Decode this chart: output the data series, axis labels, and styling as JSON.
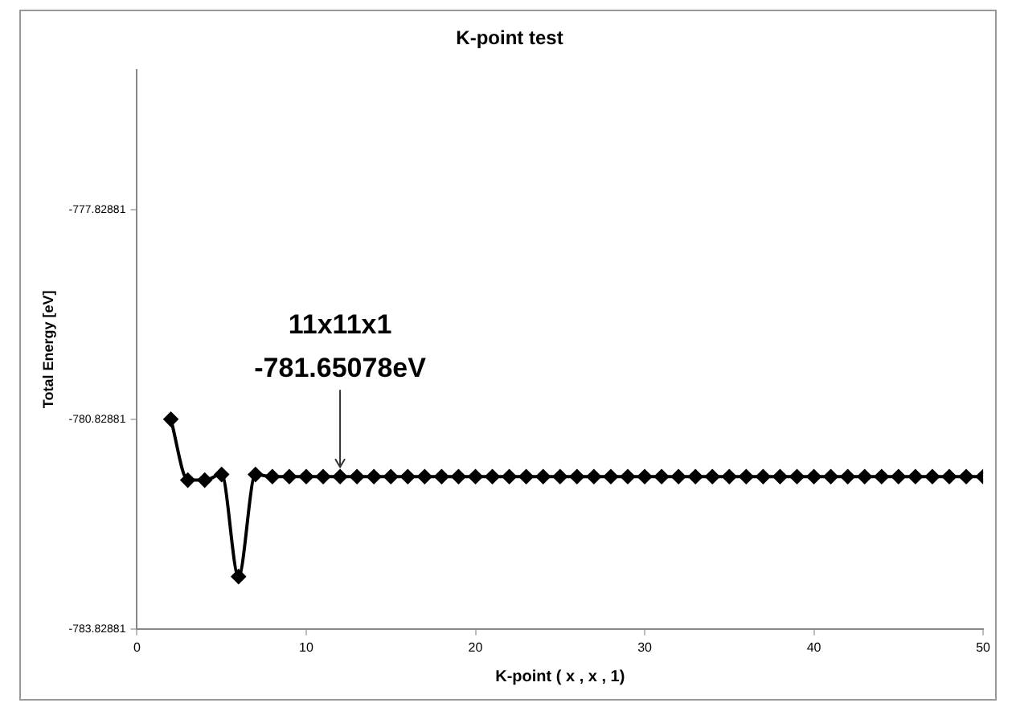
{
  "chart_data": {
    "type": "line",
    "title": "K-point test",
    "xlabel": "K-point ( x , x , 1)",
    "ylabel": "Total Energy [eV]",
    "x": [
      2,
      3,
      4,
      5,
      6,
      7,
      8,
      9,
      10,
      11,
      12,
      13,
      14,
      15,
      16,
      17,
      18,
      19,
      20,
      21,
      22,
      23,
      24,
      25,
      26,
      27,
      28,
      29,
      30,
      31,
      32,
      33,
      34,
      35,
      36,
      37,
      38,
      39,
      40,
      41,
      42,
      43,
      44,
      45,
      46,
      47,
      48,
      49,
      50
    ],
    "series": [
      {
        "color": "#000000",
        "values": [
          -780.83,
          -781.7,
          -781.7,
          -781.62,
          -783.08,
          -781.62,
          -781.65078,
          -781.65078,
          -781.65078,
          -781.65078,
          -781.65078,
          -781.65078,
          -781.65078,
          -781.65078,
          -781.65078,
          -781.65078,
          -781.65078,
          -781.65078,
          -781.65078,
          -781.65078,
          -781.65078,
          -781.65078,
          -781.65078,
          -781.65078,
          -781.65078,
          -781.65078,
          -781.65078,
          -781.65078,
          -781.65078,
          -781.65078,
          -781.65078,
          -781.65078,
          -781.65078,
          -781.65078,
          -781.65078,
          -781.65078,
          -781.65078,
          -781.65078,
          -781.65078,
          -781.65078,
          -781.65078,
          -781.65078,
          -781.65078,
          -781.65078,
          -781.65078,
          -781.65078,
          -781.65078,
          -781.65078,
          -781.65078
        ]
      }
    ],
    "xlim": [
      0,
      50
    ],
    "xticks": [
      0,
      10,
      20,
      30,
      40,
      50
    ],
    "ylim": [
      -783.82881,
      -775.83
    ],
    "yticks": [
      -783.82881,
      -780.82881,
      -777.82881
    ],
    "grid": false,
    "legend": false,
    "marker": "diamond",
    "line_style": "solid",
    "annotations": [
      {
        "text": "11x11x1\n-781.65078eV",
        "x": 12,
        "y": -781.65078
      }
    ]
  }
}
